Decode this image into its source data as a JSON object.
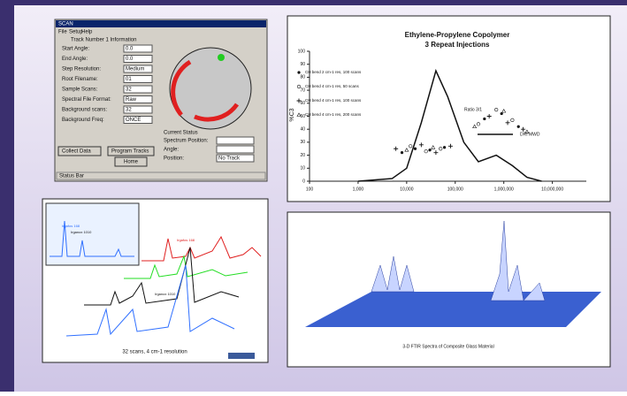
{
  "window": {
    "title": "SCAN",
    "menu": [
      "File",
      "Setup",
      "Help"
    ],
    "section": "Track Number 1 Information",
    "fields": [
      {
        "label": "Start Angle:",
        "value": "0.0"
      },
      {
        "label": "End Angle:",
        "value": "0.0"
      },
      {
        "label": "Step Resolution:",
        "value": "Medium"
      },
      {
        "label": "Root Filename:",
        "value": "01"
      },
      {
        "label": "Sample Scans:",
        "value": "32"
      },
      {
        "label": "Spectral File Format:",
        "value": "Raw"
      },
      {
        "label": "Background scans:",
        "value": "32"
      },
      {
        "label": "Background Freq:",
        "value": "ONCE"
      }
    ],
    "buttons": [
      "Collect Data",
      "Program Tracks",
      "Home"
    ],
    "status_title": "Current Status",
    "status_fields": [
      "Spectrum Position:",
      "Angle:",
      "Position:"
    ],
    "position_value": "No Track",
    "status_bar": "Status Bar"
  },
  "chart_data": {
    "type": "scatter",
    "title": "Ethylene-Propylene Copolymer",
    "subtitle": "3 Repeat Injections",
    "y_label": "%C3",
    "annotation": "Ratio 3/1",
    "log_x": true,
    "xlim": [
      100,
      50000000
    ],
    "xticks": [
      100,
      {
        "value": 1000,
        "label": "1,000"
      },
      {
        "value": 10000,
        "label": "10,000"
      },
      {
        "value": 100000,
        "label": "100,000"
      },
      {
        "value": 1000000,
        "label": "1,000,000"
      },
      {
        "value": 10000000,
        "label": "10,000,000"
      }
    ],
    "ylim": [
      0,
      100
    ],
    "yticks": [
      0,
      10,
      20,
      30,
      40,
      50,
      60,
      70,
      80,
      90,
      100
    ],
    "series": [
      {
        "name": "CH bend 2 cm-1 res, 100 scans",
        "marker": "dot",
        "color": "#111111",
        "x": [
          8000,
          15000,
          30000,
          60000,
          400000,
          900000,
          2000000
        ],
        "values": [
          22,
          25,
          24,
          26,
          48,
          52,
          42
        ]
      },
      {
        "name": "CH bend 4 cm-1 res, 50 scans",
        "marker": "circle",
        "color": "#111111",
        "x": [
          12000,
          25000,
          50000,
          300000,
          700000,
          1500000
        ],
        "values": [
          27,
          23,
          25,
          44,
          55,
          47
        ]
      },
      {
        "name": "CH bend 4 cm-1 res, 100 scans",
        "marker": "plus",
        "color": "#111111",
        "x": [
          6000,
          20000,
          40000,
          80000,
          500000,
          1200000,
          2500000
        ],
        "values": [
          25,
          28,
          22,
          27,
          50,
          45,
          40
        ]
      },
      {
        "name": "CH bend 4 cm-1 res, 200 scans",
        "marker": "triangle",
        "color": "#111111",
        "x": [
          10000,
          35000,
          250000,
          1000000,
          3000000
        ],
        "values": [
          24,
          26,
          42,
          54,
          38
        ]
      },
      {
        "name": "DRI MWD",
        "type": "line",
        "color": "#111111",
        "x": [
          1000,
          5000,
          10000,
          20000,
          40000,
          70000,
          150000,
          300000,
          700000,
          1500000,
          3000000,
          6000000
        ],
        "values": [
          0,
          2,
          10,
          45,
          85,
          65,
          30,
          15,
          20,
          12,
          3,
          0
        ]
      }
    ]
  },
  "spectra_panel": {
    "inset": [
      "Irgafos 168",
      "Irganox 1010"
    ],
    "labels": [
      "Irgafos 168",
      "Irganox 1010"
    ],
    "caption": "32 scans, 4 cm-1 resolution"
  },
  "ftir_panel": {
    "caption": "3-D FTIR Spectra of Composite Glass Material"
  }
}
